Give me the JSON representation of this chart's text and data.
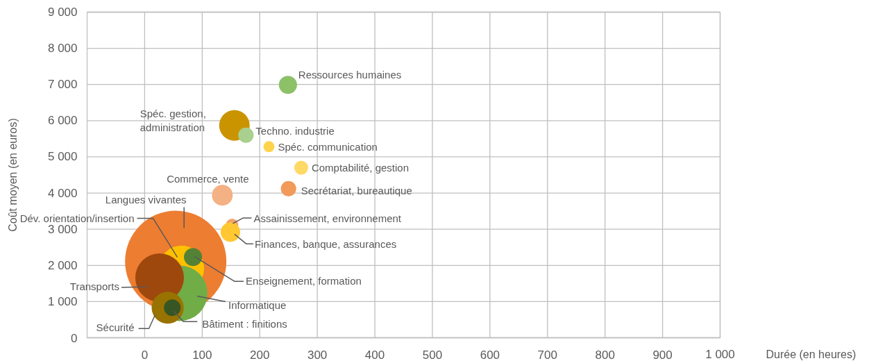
{
  "chart_data": {
    "type": "bubble",
    "xlabel": "Durée (en heures)",
    "ylabel": "Coût moyen (en euros)",
    "xlim": [
      -100,
      1000
    ],
    "ylim": [
      0,
      9000
    ],
    "xticks": [
      0,
      100,
      200,
      300,
      400,
      500,
      600,
      700,
      800,
      900,
      {
        "value": 1000,
        "label": "1 000"
      }
    ],
    "yticks": [
      0,
      {
        "value": 1000,
        "label": "1 000"
      },
      {
        "value": 2000,
        "label": "2 000"
      },
      {
        "value": 3000,
        "label": "3 000"
      },
      {
        "value": 4000,
        "label": "4 000"
      },
      {
        "value": 5000,
        "label": "5 000"
      },
      {
        "value": 6000,
        "label": "6 000"
      },
      {
        "value": 7000,
        "label": "7 000"
      },
      {
        "value": 8000,
        "label": "8 000"
      },
      {
        "value": 9000,
        "label": "9 000"
      }
    ],
    "grid": true,
    "legend": false,
    "series": [
      {
        "name": "Langues vivantes",
        "color": "#ed7d31",
        "x": [
          54
        ],
        "values": [
          2110
        ],
        "sizes": [
          1
        ]
      },
      {
        "name": "Dév. orientation/insertion",
        "color": "#ffc000",
        "x": [
          64
        ],
        "values": [
          1920
        ],
        "sizes": [
          0.2
        ]
      },
      {
        "name": "Informatique",
        "color": "#70ad47",
        "x": [
          61
        ],
        "values": [
          1230
        ],
        "sizes": [
          0.3
        ]
      },
      {
        "name": "Transports",
        "color": "#9e480e",
        "x": [
          26
        ],
        "values": [
          1660
        ],
        "sizes": [
          0.23
        ]
      },
      {
        "name": "Enseignement, formation",
        "color": "#548235",
        "x": [
          84
        ],
        "values": [
          2230
        ],
        "sizes": [
          0.032
        ]
      },
      {
        "name": "Sécurité",
        "color": "#997300",
        "x": [
          40
        ],
        "values": [
          830
        ],
        "sizes": [
          0.1
        ]
      },
      {
        "name": "Bâtiment : finitions",
        "color": "#375623",
        "x": [
          48
        ],
        "values": [
          830
        ],
        "sizes": [
          0.027
        ]
      },
      {
        "name": "Commerce, vente",
        "color": "#f4b183",
        "x": [
          135
        ],
        "values": [
          3940
        ],
        "sizes": [
          0.042
        ]
      },
      {
        "name": "Assainissement, environnement",
        "color": "#f1a36d",
        "x": [
          152
        ],
        "values": [
          3120
        ],
        "sizes": [
          0.015
        ]
      },
      {
        "name": "Finances, banque, assurances",
        "color": "#ffc832",
        "x": [
          149
        ],
        "values": [
          2920
        ],
        "sizes": [
          0.037
        ]
      },
      {
        "name": "Secrétariat, bureautique",
        "color": "#f19a5a",
        "x": [
          250
        ],
        "values": [
          4120
        ],
        "sizes": [
          0.023
        ]
      },
      {
        "name": "Ressources humaines",
        "color": "#8cc168",
        "x": [
          249
        ],
        "values": [
          6990
        ],
        "sizes": [
          0.032
        ]
      },
      {
        "name": "Spéc. gestion,\nadministration",
        "color": "#c99400",
        "x": [
          156
        ],
        "values": [
          5870
        ],
        "sizes": [
          0.091
        ]
      },
      {
        "name": "Techno. industrie",
        "color": "#a9d08e",
        "x": [
          176
        ],
        "values": [
          5600
        ],
        "sizes": [
          0.023
        ]
      },
      {
        "name": "Spéc. communication",
        "color": "#ffd34d",
        "x": [
          216
        ],
        "values": [
          5280
        ],
        "sizes": [
          0.012
        ]
      },
      {
        "name": "Comptabilité, gestion",
        "color": "#ffd966",
        "x": [
          272
        ],
        "values": [
          4700
        ],
        "sizes": [
          0.019
        ]
      }
    ]
  }
}
